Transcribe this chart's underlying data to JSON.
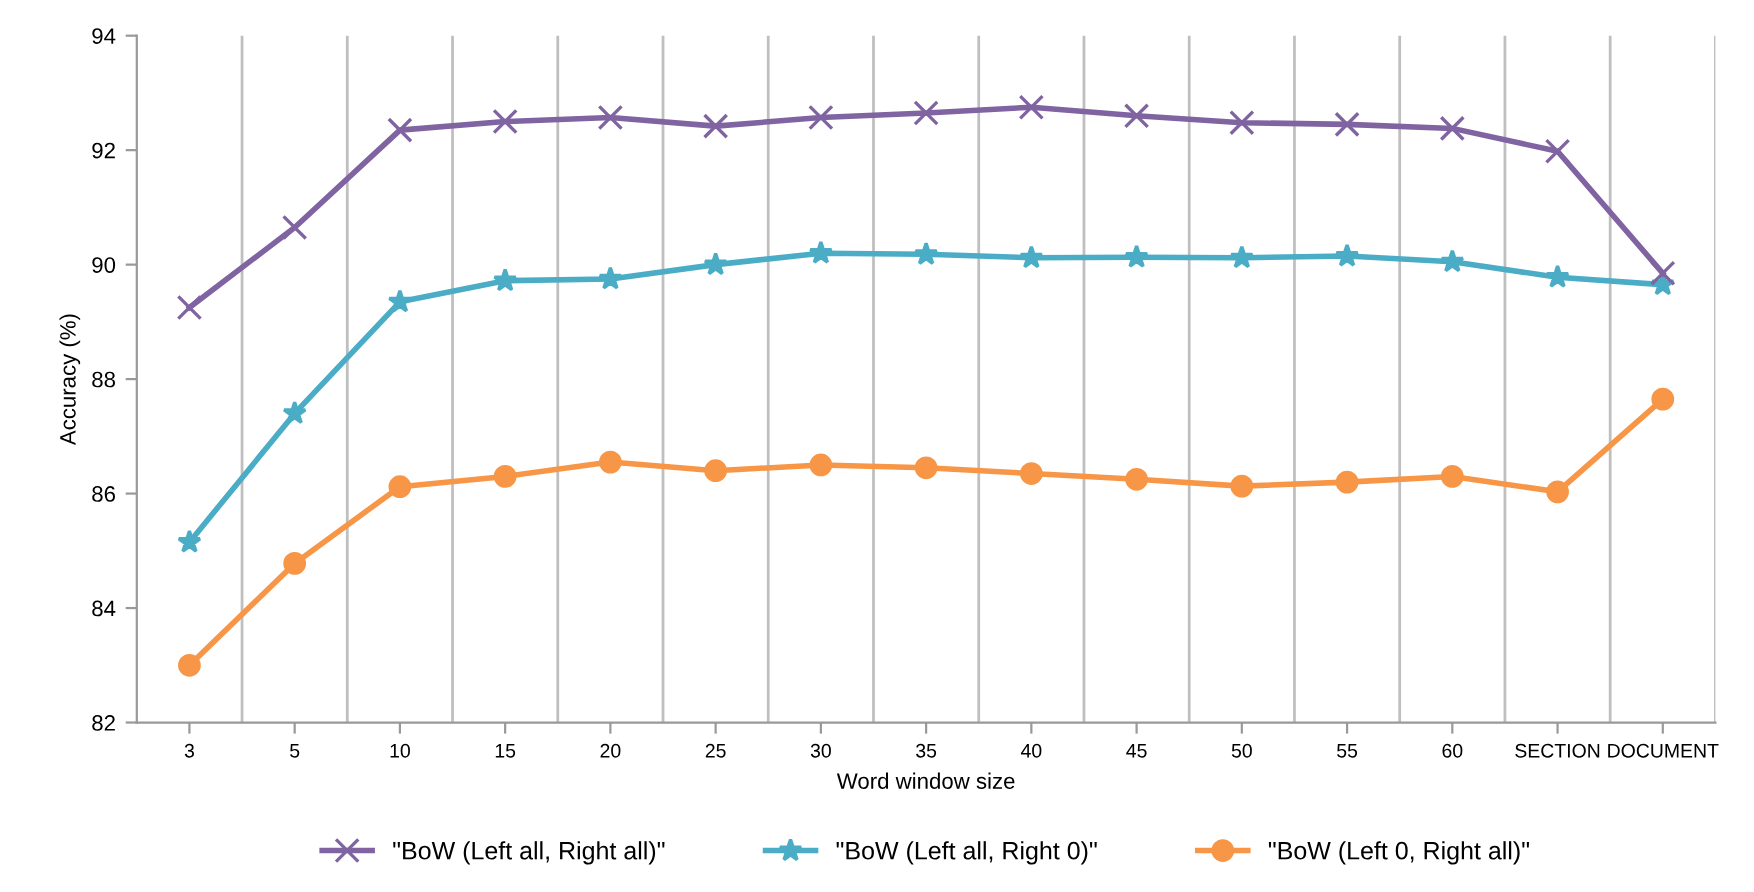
{
  "chart_data": {
    "type": "line",
    "xlabel": "Word window size",
    "ylabel": "Accuracy (%)",
    "categories": [
      "3",
      "5",
      "10",
      "15",
      "20",
      "25",
      "30",
      "35",
      "40",
      "45",
      "50",
      "55",
      "60",
      "SECTION",
      "DOCUMENT"
    ],
    "series": [
      {
        "name": "\"BoW (Left all, Right all)\"",
        "color": "#8064a2",
        "marker": "cross",
        "values": [
          89.25,
          90.65,
          92.35,
          92.5,
          92.57,
          92.42,
          92.57,
          92.65,
          92.75,
          92.6,
          92.48,
          92.45,
          92.38,
          91.98,
          89.85
        ]
      },
      {
        "name": "\"BoW (Left all, Right 0)\"",
        "color": "#4bacc6",
        "marker": "star",
        "values": [
          85.15,
          87.4,
          89.35,
          89.72,
          89.75,
          90.0,
          90.2,
          90.18,
          90.12,
          90.13,
          90.12,
          90.15,
          90.05,
          89.78,
          89.65
        ]
      },
      {
        "name": "\"BoW (Left 0, Right all)\"",
        "color": "#f79646",
        "marker": "circle",
        "values": [
          83.0,
          84.78,
          86.12,
          86.3,
          86.55,
          86.4,
          86.5,
          86.45,
          86.35,
          86.25,
          86.13,
          86.2,
          86.3,
          86.03,
          87.65
        ]
      }
    ],
    "ylim": [
      82,
      94
    ],
    "yticks": [
      82,
      84,
      86,
      88,
      90,
      92,
      94
    ],
    "grid": "x",
    "legend": "bottom",
    "line_style": "solid"
  }
}
